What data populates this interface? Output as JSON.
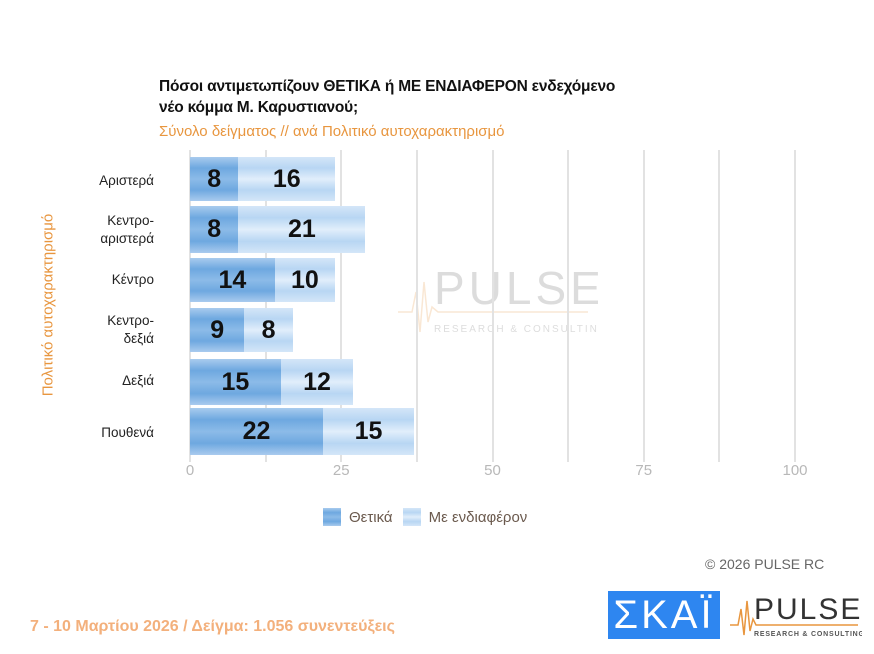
{
  "title_line1": "Πόσοι αντιμετωπίζουν ΘΕΤΙΚΑ ή ΜΕ ΕΝΔΙΑΦΕΡΟΝ ενδεχόμενο",
  "title_line2": "νέο κόμμα Μ. Καρυστιανού;",
  "subtitle": "Σύνολο δείγματος // ανά Πολιτικό αυτοχαρακτηρισμό",
  "y_axis_label": "Πολιτικό αυτοχαρακτηρισμό",
  "ticks": [
    "0",
    "25",
    "50",
    "75",
    "100"
  ],
  "categories": [
    {
      "line1": "Αριστερά",
      "line2": ""
    },
    {
      "line1": "Κεντρο-",
      "line2": "αριστερά"
    },
    {
      "line1": "Κέντρο",
      "line2": ""
    },
    {
      "line1": "Κεντρο-",
      "line2": "δεξιά"
    },
    {
      "line1": "Δεξιά",
      "line2": ""
    },
    {
      "line1": "Πουθενά",
      "line2": ""
    }
  ],
  "legend": {
    "series1": "Θετικά",
    "series2": "Με ενδιαφέρον"
  },
  "copyright": "©  2026  PULSE RC",
  "skai_logo": "ΣΚΑΪ",
  "pulse_logo": {
    "name": "PULSE",
    "tagline": "RESEARCH & CONSULTING"
  },
  "watermark": {
    "name": "PULSE",
    "tagline": "RESEARCH & CONSULTING"
  },
  "footer": "7 - 10  Μαρτίου 2026  /  Δείγμα:  1.056 συνεντεύξεις",
  "colors": {
    "series1": "#6ea8e0",
    "series2": "#b8d6f3",
    "accent": "#e8963f"
  },
  "chart_data": {
    "type": "bar",
    "orientation": "horizontal",
    "stacked": true,
    "title": "Πόσοι αντιμετωπίζουν ΘΕΤΙΚΑ ή ΜΕ ΕΝΔΙΑΦΕΡΟΝ ενδεχόμενο νέο κόμμα Μ. Καρυστιανού;",
    "subtitle": "Σύνολο δείγματος // ανά Πολιτικό αυτοχαρακτηρισμό",
    "categories": [
      "Αριστερά",
      "Κεντρο-αριστερά",
      "Κέντρο",
      "Κεντρο-δεξιά",
      "Δεξιά",
      "Πουθενά"
    ],
    "series": [
      {
        "name": "Θετικά",
        "values": [
          8,
          8,
          14,
          9,
          15,
          22
        ]
      },
      {
        "name": "Με ενδιαφέρον",
        "values": [
          16,
          21,
          10,
          8,
          12,
          15
        ]
      }
    ],
    "xlabel": "",
    "ylabel": "Πολιτικό αυτοχαρακτηρισμό",
    "xlim": [
      0,
      100
    ],
    "xticks": [
      0,
      25,
      50,
      75,
      100
    ],
    "grid": true,
    "legend_position": "bottom"
  }
}
